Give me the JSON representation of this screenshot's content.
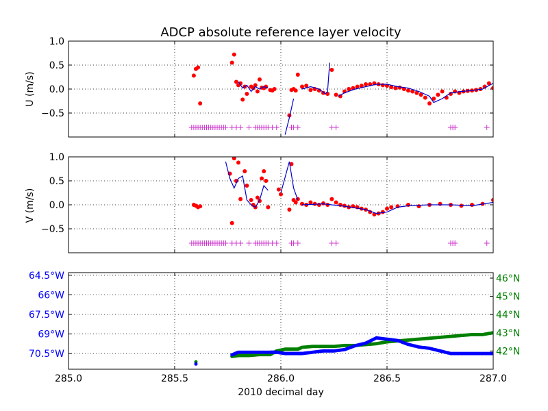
{
  "title": "ADCP absolute reference layer velocity",
  "xlabel": "2010 decimal day",
  "x_tick_labels": [
    "285.0",
    "285.5",
    "286.0",
    "286.5",
    "287.0"
  ],
  "colors": {
    "points": "#ff0000",
    "line": "#0000cc",
    "flags": "#cc33cc",
    "longitude": "#0000ff",
    "latitude": "#008000",
    "grid": "#000000"
  },
  "chart_data": [
    {
      "type": "line",
      "panel": "u",
      "title": "ADCP absolute reference layer velocity",
      "xlabel": "",
      "ylabel": "U (m/s)",
      "xlim": [
        285.0,
        287.0
      ],
      "ylim": [
        -1.0,
        1.0
      ],
      "ytick_labels": [
        "1.0",
        "0.5",
        "0.0",
        "−0.5"
      ],
      "ytick_values": [
        1.0,
        0.5,
        0.0,
        -0.5
      ],
      "grid": true,
      "series": [
        {
          "kind": "scatter",
          "x": [
            285.59,
            285.6,
            285.61,
            285.62,
            285.77,
            285.78,
            285.79,
            285.8,
            285.81,
            285.82,
            285.83,
            285.84,
            285.86,
            285.87,
            285.88,
            285.89,
            285.9,
            285.91,
            285.92,
            285.93,
            285.95,
            285.96,
            285.97,
            286.04,
            286.05,
            286.06,
            286.07,
            286.08,
            286.1,
            286.12,
            286.14,
            286.16,
            286.18,
            286.2,
            286.22,
            286.24,
            286.26,
            286.28,
            286.3,
            286.32,
            286.34,
            286.36,
            286.38,
            286.4,
            286.42,
            286.44,
            286.46,
            286.48,
            286.5,
            286.52,
            286.54,
            286.56,
            286.58,
            286.6,
            286.62,
            286.64,
            286.66,
            286.68,
            286.7,
            286.72,
            286.74,
            286.76,
            286.78,
            286.8,
            286.82,
            286.84,
            286.86,
            286.88,
            286.9,
            286.92,
            286.94,
            286.96,
            286.98,
            287.0
          ],
          "y": [
            0.28,
            0.42,
            0.45,
            -0.3,
            0.55,
            0.72,
            0.15,
            0.08,
            0.12,
            -0.22,
            0.05,
            -0.1,
            0.05,
            0.02,
            0.08,
            -0.05,
            0.2,
            0.03,
            0.02,
            0.05,
            -0.02,
            -0.03,
            0.0,
            -0.55,
            -0.02,
            0.0,
            -0.03,
            0.3,
            0.05,
            0.07,
            -0.02,
            0.0,
            -0.03,
            -0.08,
            -0.1,
            0.4,
            -0.12,
            -0.15,
            -0.05,
            0.0,
            0.02,
            0.05,
            0.07,
            0.1,
            0.1,
            0.12,
            0.1,
            0.08,
            0.07,
            0.04,
            0.02,
            0.03,
            0.0,
            -0.03,
            -0.05,
            -0.08,
            -0.12,
            -0.18,
            -0.3,
            -0.2,
            -0.12,
            -0.05,
            -0.18,
            -0.1,
            -0.05,
            -0.08,
            -0.05,
            -0.04,
            -0.03,
            -0.02,
            0.0,
            0.05,
            0.12,
            0.02
          ]
        },
        {
          "kind": "line",
          "segments": [
            {
              "x": [
                285.8,
                285.82,
                285.84,
                285.86,
                285.88,
                285.9,
                285.92,
                285.94
              ],
              "y": [
                0.15,
                0.02,
                0.08,
                -0.05,
                0.05,
                0.0,
                0.05,
                0.02
              ]
            },
            {
              "x": [
                286.02,
                286.04,
                286.06
              ],
              "y": [
                -0.95,
                -0.6,
                -0.2
              ]
            },
            {
              "x": [
                286.1,
                286.14,
                286.18,
                286.21,
                286.22,
                286.23
              ],
              "y": [
                0.0,
                0.05,
                0.0,
                -0.1,
                -0.05,
                0.55
              ]
            },
            {
              "x": [
                286.27,
                286.3,
                286.35,
                286.4,
                286.45,
                286.5,
                286.55,
                286.6,
                286.65,
                286.7,
                286.72,
                286.76,
                286.8,
                286.85,
                286.9,
                286.95,
                287.0
              ],
              "y": [
                -0.15,
                -0.08,
                0.0,
                0.05,
                0.1,
                0.1,
                0.05,
                0.02,
                -0.05,
                -0.15,
                -0.28,
                -0.2,
                -0.08,
                -0.05,
                -0.03,
                0.0,
                0.12
              ]
            }
          ]
        },
        {
          "kind": "flag",
          "y": -0.8,
          "x": [
            285.58,
            285.59,
            285.6,
            285.61,
            285.62,
            285.63,
            285.64,
            285.65,
            285.66,
            285.67,
            285.68,
            285.69,
            285.7,
            285.71,
            285.72,
            285.73,
            285.74,
            285.77,
            285.79,
            285.81,
            285.85,
            285.88,
            285.89,
            285.9,
            285.91,
            285.92,
            285.93,
            285.94,
            285.96,
            285.98,
            286.05,
            286.06,
            286.08,
            286.24,
            286.26,
            286.8,
            286.81,
            286.82,
            286.97
          ]
        }
      ]
    },
    {
      "type": "line",
      "panel": "v",
      "xlabel": "",
      "ylabel": "V (m/s)",
      "xlim": [
        285.0,
        287.0
      ],
      "ylim": [
        -1.0,
        1.0
      ],
      "ytick_labels": [
        "1.0",
        "0.5",
        "0.0",
        "−0.5"
      ],
      "ytick_values": [
        1.0,
        0.5,
        0.0,
        -0.5
      ],
      "grid": true,
      "series": [
        {
          "kind": "scatter",
          "x": [
            285.59,
            285.6,
            285.61,
            285.62,
            285.76,
            285.77,
            285.78,
            285.79,
            285.8,
            285.81,
            285.83,
            285.84,
            285.86,
            285.87,
            285.88,
            285.89,
            285.9,
            285.91,
            285.92,
            285.93,
            285.94,
            285.99,
            286.0,
            286.04,
            286.05,
            286.06,
            286.07,
            286.08,
            286.1,
            286.12,
            286.14,
            286.16,
            286.18,
            286.2,
            286.22,
            286.24,
            286.26,
            286.28,
            286.3,
            286.32,
            286.34,
            286.36,
            286.38,
            286.4,
            286.42,
            286.44,
            286.46,
            286.48,
            286.5,
            286.52,
            286.55,
            286.6,
            286.65,
            286.7,
            286.75,
            286.8,
            286.85,
            286.9,
            286.95,
            287.0
          ],
          "y": [
            0.0,
            -0.02,
            -0.05,
            -0.03,
            0.65,
            -0.38,
            0.97,
            0.5,
            0.88,
            0.12,
            0.7,
            0.4,
            0.1,
            0.0,
            -0.05,
            0.15,
            0.08,
            0.55,
            0.7,
            0.5,
            -0.05,
            0.32,
            0.22,
            -0.1,
            0.85,
            0.1,
            0.05,
            0.12,
            0.02,
            0.0,
            0.05,
            0.02,
            0.0,
            0.03,
            0.0,
            0.12,
            0.05,
            0.0,
            -0.02,
            -0.05,
            -0.03,
            -0.05,
            -0.08,
            -0.1,
            -0.15,
            -0.2,
            -0.18,
            -0.15,
            -0.08,
            -0.05,
            -0.03,
            0.0,
            -0.03,
            0.0,
            0.02,
            0.0,
            -0.02,
            0.0,
            0.02,
            0.1
          ]
        },
        {
          "kind": "line",
          "segments": [
            {
              "x": [
                285.74,
                285.76,
                285.78,
                285.8,
                285.82,
                285.84,
                285.86,
                285.88,
                285.9,
                285.92,
                285.94
              ],
              "y": [
                0.9,
                0.55,
                0.35,
                0.55,
                0.6,
                0.1,
                0.0,
                -0.05,
                0.1,
                0.4,
                0.3
              ]
            },
            {
              "x": [
                286.0,
                286.04,
                286.06,
                286.08
              ],
              "y": [
                0.25,
                0.9,
                0.35,
                0.1
              ]
            },
            {
              "x": [
                286.1,
                286.2,
                286.3,
                286.4,
                286.45,
                286.5,
                286.55,
                286.6,
                286.7,
                286.8,
                286.9,
                287.0
              ],
              "y": [
                0.0,
                0.02,
                -0.03,
                -0.1,
                -0.18,
                -0.15,
                -0.05,
                -0.02,
                0.0,
                0.0,
                -0.02,
                0.05
              ]
            }
          ]
        },
        {
          "kind": "flag",
          "y": -0.8,
          "x": [
            285.58,
            285.59,
            285.6,
            285.61,
            285.62,
            285.63,
            285.64,
            285.65,
            285.66,
            285.67,
            285.68,
            285.69,
            285.7,
            285.71,
            285.72,
            285.73,
            285.74,
            285.77,
            285.79,
            285.81,
            285.85,
            285.88,
            285.89,
            285.9,
            285.91,
            285.92,
            285.93,
            285.94,
            285.96,
            285.98,
            286.05,
            286.06,
            286.08,
            286.24,
            286.26,
            286.8,
            286.81,
            286.82,
            286.97
          ]
        }
      ]
    },
    {
      "type": "scatter",
      "panel": "position",
      "xlabel": "2010 decimal day",
      "xlim": [
        285.0,
        287.0
      ],
      "ylim_longitude": [
        -71.7,
        -64.3
      ],
      "ylim_latitude": [
        41.0,
        46.3
      ],
      "ytick_labels_left": [
        "64.5°W",
        "66°W",
        "67.5°W",
        "69°W",
        "70.5°W"
      ],
      "ytick_values_left": [
        -64.5,
        -66.0,
        -67.5,
        -69.0,
        -70.5
      ],
      "ytick_labels_right": [
        "46°N",
        "45°N",
        "44°N",
        "43°N",
        "42°N"
      ],
      "ytick_values_right": [
        46,
        45,
        44,
        43,
        42
      ],
      "grid": true,
      "series": [
        {
          "name": "longitude",
          "x": [
            285.6,
            285.77,
            285.8,
            285.85,
            285.9,
            285.95,
            285.97,
            285.98,
            286.02,
            286.05,
            286.08,
            286.1,
            286.15,
            286.2,
            286.25,
            286.3,
            286.35,
            286.4,
            286.45,
            286.5,
            286.55,
            286.6,
            286.65,
            286.7,
            286.75,
            286.8,
            286.85,
            286.9,
            286.95,
            287.0
          ],
          "y": [
            -71.3,
            -70.6,
            -70.4,
            -70.4,
            -70.4,
            -70.4,
            -70.4,
            -70.4,
            -70.5,
            -70.5,
            -70.5,
            -70.5,
            -70.4,
            -70.3,
            -70.3,
            -70.2,
            -69.9,
            -69.7,
            -69.3,
            -69.4,
            -69.5,
            -69.8,
            -70.0,
            -70.1,
            -70.3,
            -70.5,
            -70.5,
            -70.5,
            -70.5,
            -70.5
          ]
        },
        {
          "name": "latitude",
          "x": [
            285.6,
            285.77,
            285.8,
            285.85,
            285.9,
            285.95,
            285.98,
            286.02,
            286.05,
            286.08,
            286.1,
            286.15,
            286.2,
            286.25,
            286.3,
            286.35,
            286.4,
            286.45,
            286.5,
            286.55,
            286.6,
            286.65,
            286.7,
            286.75,
            286.8,
            286.85,
            286.9,
            286.95,
            287.0
          ],
          "y": [
            41.4,
            41.7,
            41.75,
            41.75,
            41.8,
            41.8,
            42.0,
            42.1,
            42.1,
            42.1,
            42.2,
            42.25,
            42.25,
            42.25,
            42.3,
            42.3,
            42.35,
            42.4,
            42.5,
            42.55,
            42.6,
            42.65,
            42.7,
            42.75,
            42.8,
            42.85,
            42.9,
            42.9,
            43.0
          ]
        }
      ]
    }
  ]
}
